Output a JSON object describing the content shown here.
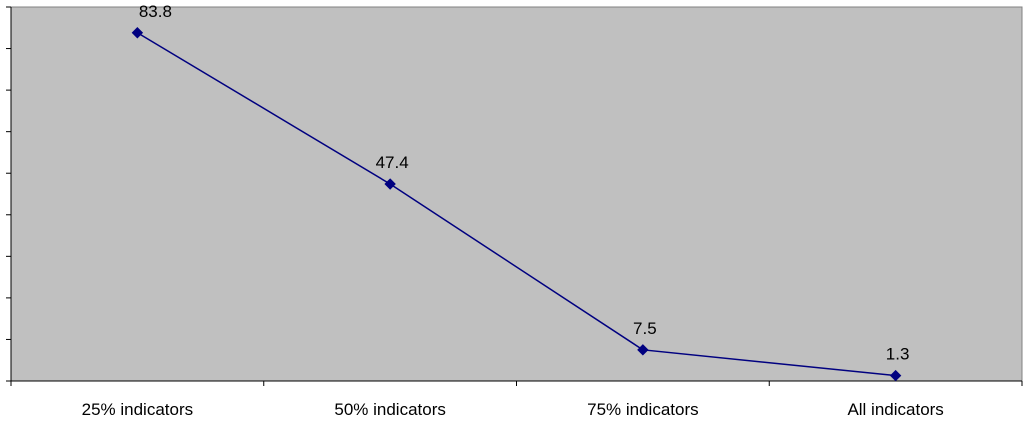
{
  "chart_data": {
    "type": "line",
    "categories": [
      "25% indicators",
      "50% indicators",
      "75% indicators",
      "All indicators"
    ],
    "series": [
      {
        "values": [
          83.8,
          47.4,
          7.5,
          1.3
        ]
      }
    ],
    "data_labels": [
      "83.8",
      "47.4",
      "7.5",
      "1.3"
    ],
    "ylim": [
      0,
      90
    ],
    "ytick_count": 9,
    "grid": false,
    "legend": "none",
    "colors": {
      "plot_background": "#c0c0c0",
      "line": "#000080",
      "marker": "#000080",
      "axis": "#808080"
    }
  }
}
